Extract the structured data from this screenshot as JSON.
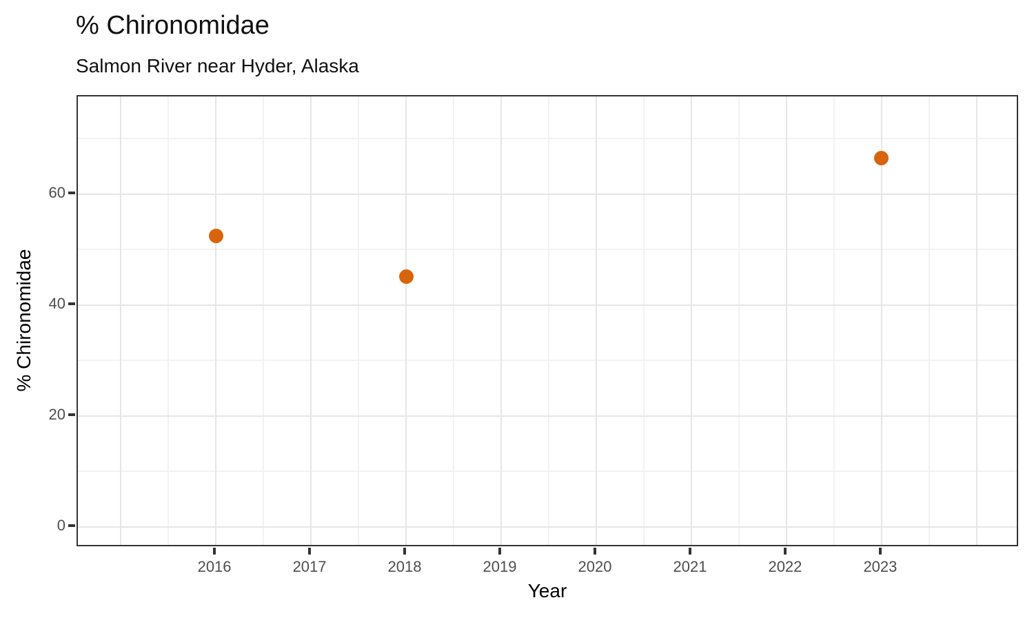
{
  "header": {
    "title": "% Chironomidae",
    "subtitle": "Salmon River near Hyder, Alaska"
  },
  "chart_data": {
    "type": "scatter",
    "title": "% Chironomidae",
    "subtitle": "Salmon River near Hyder, Alaska",
    "xlabel": "Year",
    "ylabel": "% Chironomidae",
    "xlim": [
      2014.55,
      2024.45
    ],
    "ylim": [
      -3.73,
      77.63
    ],
    "x_ticks": [
      2016,
      2017,
      2018,
      2019,
      2020,
      2021,
      2022,
      2023
    ],
    "y_ticks": [
      0,
      20,
      40,
      60
    ],
    "x_grid_major": [
      2015,
      2016,
      2017,
      2018,
      2019,
      2020,
      2021,
      2022,
      2023,
      2024
    ],
    "x_grid_minor": [
      2015.5,
      2016.5,
      2017.5,
      2018.5,
      2019.5,
      2020.5,
      2021.5,
      2022.5,
      2023.5
    ],
    "y_grid_major": [
      0,
      20,
      40,
      60
    ],
    "y_grid_minor": [
      10,
      30,
      50,
      70
    ],
    "grid": true,
    "legend": "none",
    "series": [
      {
        "name": "% Chironomidae",
        "points": [
          {
            "x": 2016,
            "y": 52.5
          },
          {
            "x": 2018,
            "y": 45.2
          },
          {
            "x": 2023,
            "y": 66.5
          }
        ]
      }
    ],
    "point_radius": 10.5,
    "colors": {
      "point": "#D8640C",
      "grid_major": "#E6E6E6",
      "grid_minor": "#F2F2F2",
      "axis": "#333333",
      "tick_label": "#4D4D4D",
      "text": "#000000"
    }
  }
}
